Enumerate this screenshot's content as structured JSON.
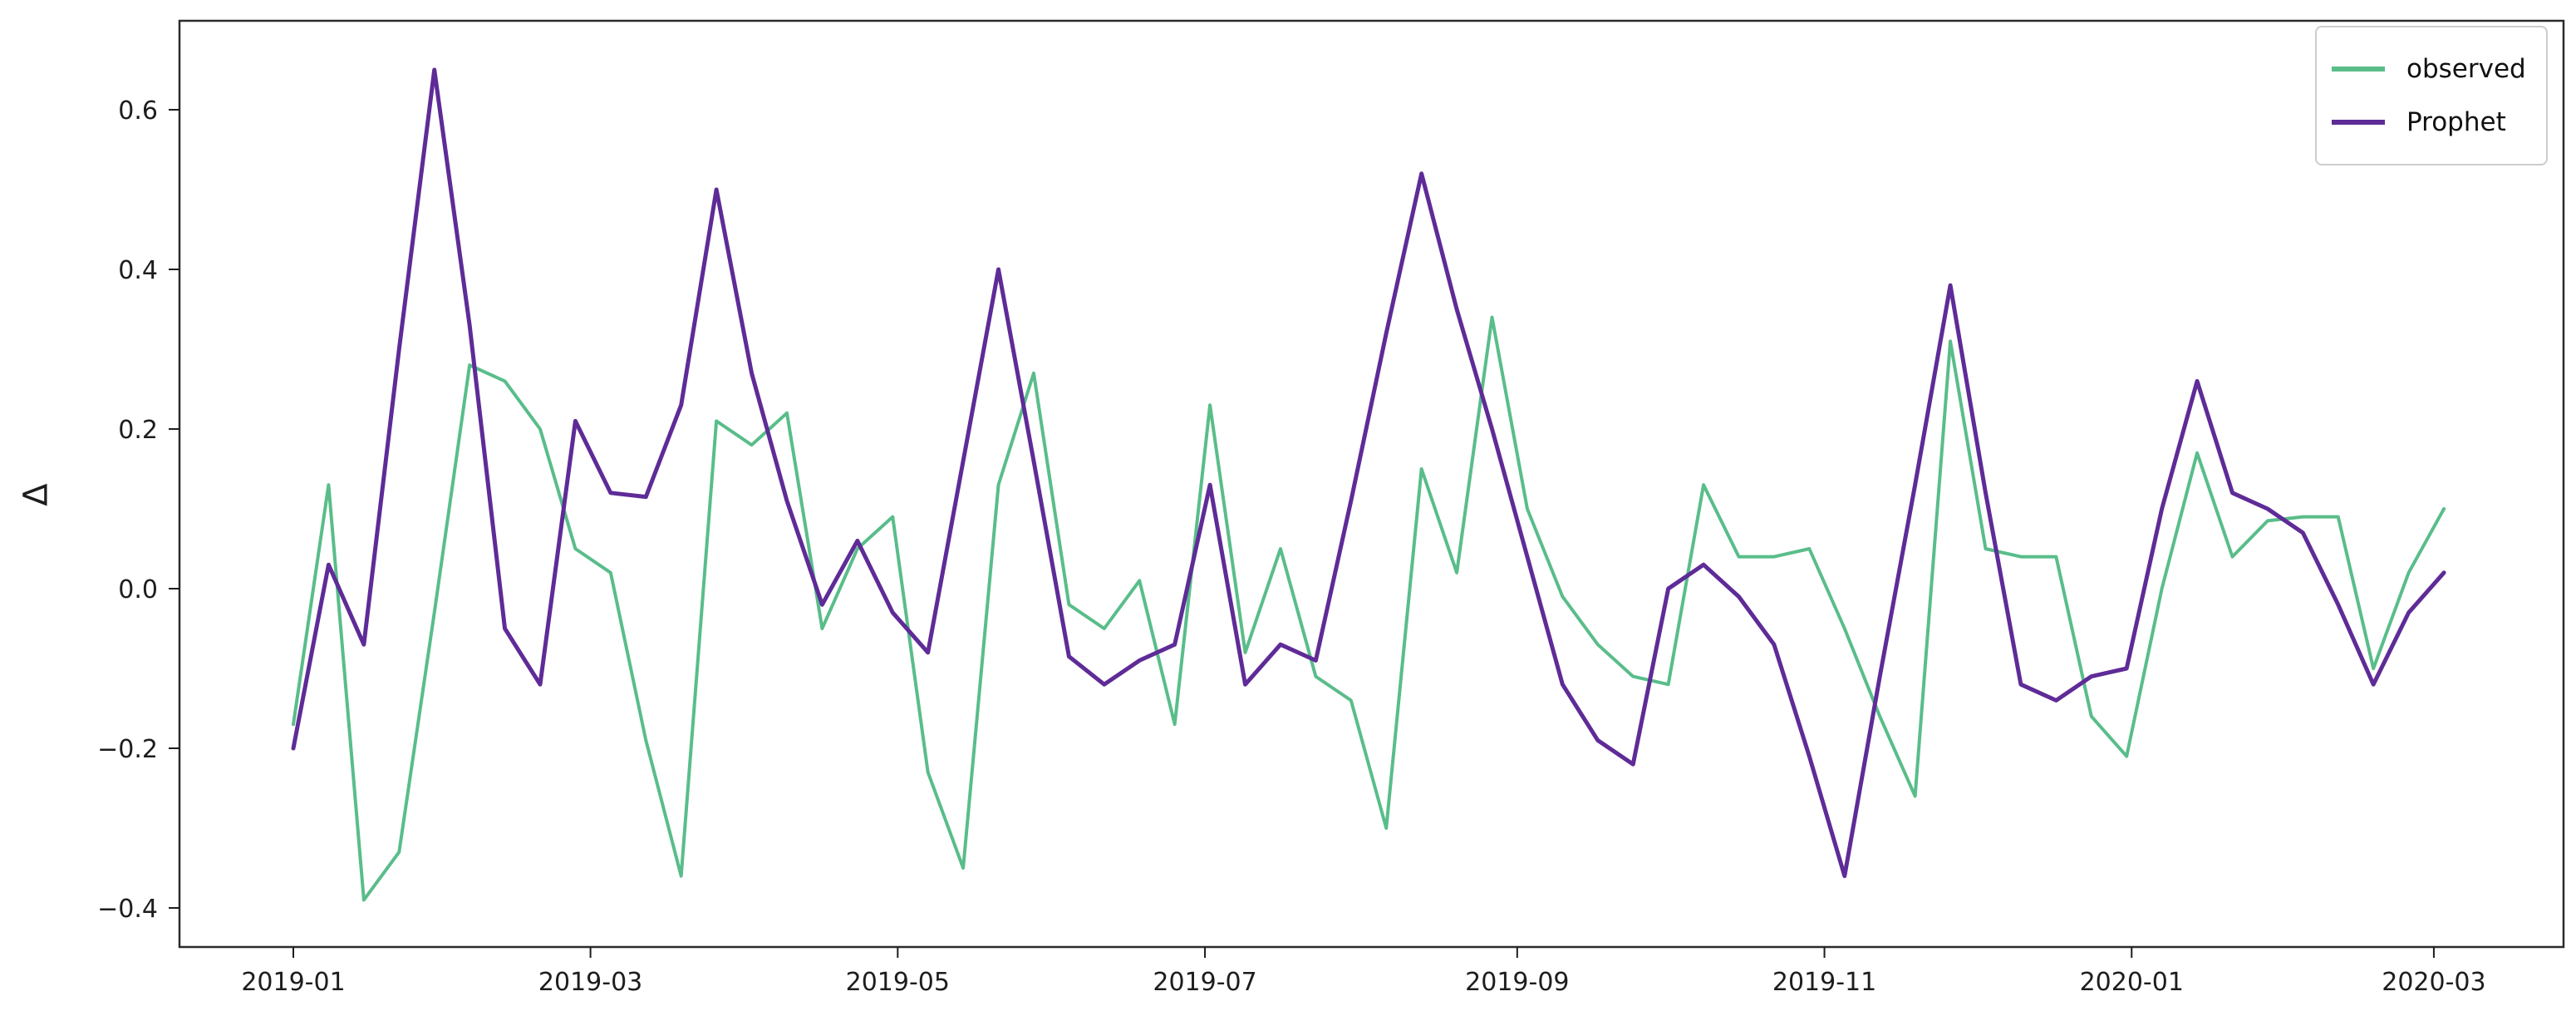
{
  "chart_data": {
    "type": "line",
    "title": "",
    "xlabel": "",
    "ylabel": "Δ",
    "grid": false,
    "legend_position": "upper right",
    "ylim": [
      -0.45,
      0.71
    ],
    "x": [
      "2019-01-01",
      "2019-01-08",
      "2019-01-15",
      "2019-01-22",
      "2019-01-29",
      "2019-02-05",
      "2019-02-12",
      "2019-02-19",
      "2019-02-26",
      "2019-03-05",
      "2019-03-12",
      "2019-03-19",
      "2019-03-26",
      "2019-04-02",
      "2019-04-09",
      "2019-04-16",
      "2019-04-23",
      "2019-04-30",
      "2019-05-07",
      "2019-05-14",
      "2019-05-21",
      "2019-05-28",
      "2019-06-04",
      "2019-06-11",
      "2019-06-18",
      "2019-06-25",
      "2019-07-02",
      "2019-07-09",
      "2019-07-16",
      "2019-07-23",
      "2019-07-30",
      "2019-08-06",
      "2019-08-13",
      "2019-08-20",
      "2019-08-27",
      "2019-09-03",
      "2019-09-10",
      "2019-09-17",
      "2019-09-24",
      "2019-10-01",
      "2019-10-08",
      "2019-10-15",
      "2019-10-22",
      "2019-10-29",
      "2019-11-05",
      "2019-11-12",
      "2019-11-19",
      "2019-11-26",
      "2019-12-03",
      "2019-12-10",
      "2019-12-17",
      "2019-12-24",
      "2019-12-31",
      "2020-01-07",
      "2020-01-14",
      "2020-01-21",
      "2020-01-28",
      "2020-02-04",
      "2020-02-11",
      "2020-02-18",
      "2020-02-25",
      "2020-03-03"
    ],
    "series": [
      {
        "name": "observed",
        "color": "#59bd8a",
        "width": 4,
        "values": [
          -0.17,
          0.13,
          -0.39,
          -0.33,
          -0.03,
          0.28,
          0.26,
          0.2,
          0.05,
          0.02,
          -0.19,
          -0.36,
          0.21,
          0.18,
          0.22,
          -0.05,
          0.05,
          0.09,
          -0.23,
          -0.35,
          0.13,
          0.27,
          -0.02,
          -0.05,
          0.01,
          -0.17,
          0.23,
          -0.08,
          0.05,
          -0.11,
          -0.14,
          -0.3,
          0.15,
          0.02,
          0.34,
          0.1,
          -0.01,
          -0.07,
          -0.11,
          -0.12,
          0.13,
          0.04,
          0.04,
          0.05,
          -0.05,
          -0.16,
          -0.26,
          0.31,
          0.05,
          0.04,
          0.04,
          -0.16,
          -0.21,
          0.0,
          0.17,
          0.04,
          0.085,
          0.09,
          0.09,
          -0.1,
          0.02,
          0.1
        ]
      },
      {
        "name": "Prophet",
        "color": "#5e2b97",
        "width": 5,
        "values": [
          -0.2,
          0.03,
          -0.07,
          0.3,
          0.65,
          0.33,
          -0.05,
          -0.12,
          0.21,
          0.12,
          0.115,
          0.23,
          0.5,
          0.27,
          0.11,
          -0.02,
          0.06,
          -0.03,
          -0.08,
          0.16,
          0.4,
          0.16,
          -0.085,
          -0.12,
          -0.09,
          -0.07,
          0.13,
          -0.12,
          -0.07,
          -0.09,
          0.11,
          0.32,
          0.52,
          0.35,
          0.2,
          0.04,
          -0.12,
          -0.19,
          -0.22,
          0.0,
          0.03,
          -0.01,
          -0.07,
          -0.21,
          -0.36,
          -0.11,
          0.13,
          0.38,
          0.12,
          -0.12,
          -0.14,
          -0.11,
          -0.1,
          0.1,
          0.26,
          0.12,
          0.1,
          0.07,
          -0.02,
          -0.12,
          -0.03,
          0.02
        ]
      }
    ],
    "xticks": [
      {
        "label": "2019-01",
        "date": "2019-01-01"
      },
      {
        "label": "2019-03",
        "date": "2019-03-01"
      },
      {
        "label": "2019-05",
        "date": "2019-05-01"
      },
      {
        "label": "2019-07",
        "date": "2019-07-01"
      },
      {
        "label": "2019-09",
        "date": "2019-09-01"
      },
      {
        "label": "2019-11",
        "date": "2019-11-01"
      },
      {
        "label": "2020-01",
        "date": "2020-01-01"
      },
      {
        "label": "2020-03",
        "date": "2020-03-01"
      }
    ],
    "yticks": [
      {
        "label": "0.6",
        "value": 0.6
      },
      {
        "label": "0.4",
        "value": 0.4
      },
      {
        "label": "0.2",
        "value": 0.2
      },
      {
        "label": "0.0",
        "value": 0.0
      },
      {
        "label": "−0.2",
        "value": -0.2
      },
      {
        "label": "−0.4",
        "value": -0.4
      }
    ],
    "legend": {
      "items": [
        {
          "label": "observed"
        },
        {
          "label": "Prophet"
        }
      ]
    }
  }
}
